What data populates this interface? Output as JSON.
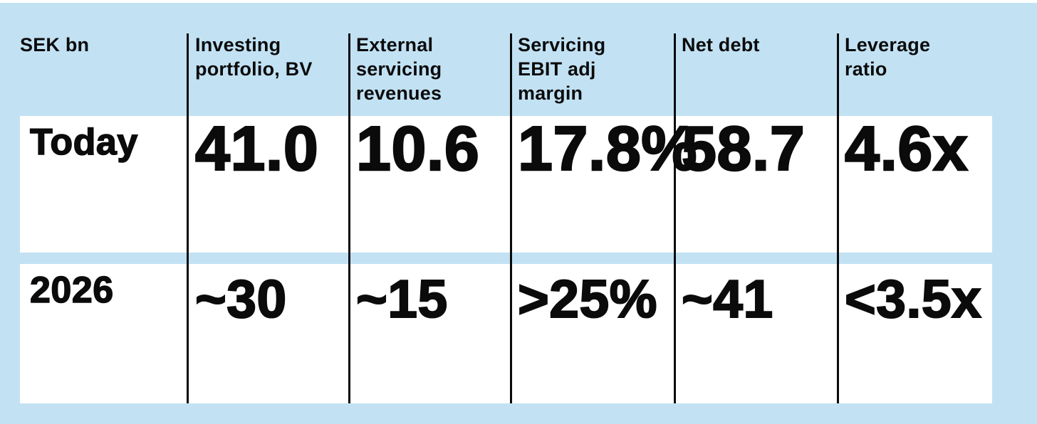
{
  "colors": {
    "background": "#c2e2f4",
    "row_background": "#ffffff",
    "text": "#0b0b0b",
    "divider": "#0a0a0a"
  },
  "chart_data": {
    "type": "table",
    "unit_label": "SEK bn",
    "columns": [
      "Investing\nportfolio, BV",
      "External\nservicing\nrevenues",
      "Servicing\nEBIT adj\nmargin",
      "Net debt",
      "Leverage\nratio"
    ],
    "rows": [
      {
        "label": "Today",
        "values": [
          "41.0",
          "10.6",
          "17.8%",
          "58.7",
          "4.6x"
        ]
      },
      {
        "label": "2026",
        "values": [
          "~30",
          "~15",
          ">25%",
          "~41",
          "<3.5x"
        ]
      }
    ]
  }
}
